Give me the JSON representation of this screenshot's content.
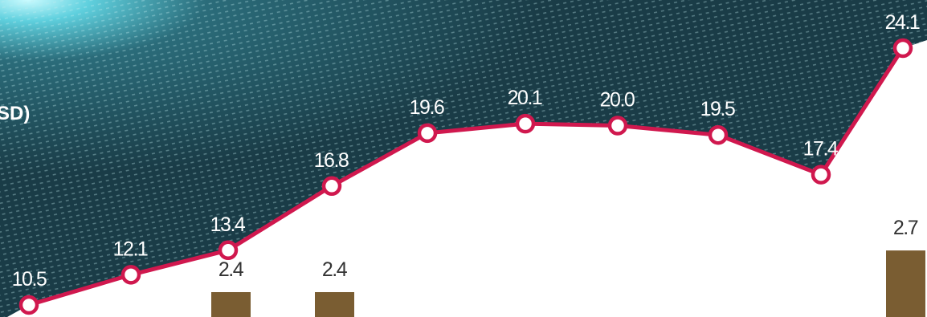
{
  "chart_data": {
    "type": "bar+line",
    "title_fragment": "SD)",
    "colors": {
      "line": "#d0184e",
      "marker_fill": "#ffffff",
      "bar": "#7a5d32",
      "background_dark": "#1f4a55",
      "background_glow": "#7fe6f0"
    },
    "line_series": {
      "values": [
        10.5,
        12.1,
        13.4,
        16.8,
        19.6,
        20.1,
        20.0,
        19.5,
        17.4,
        24.1
      ],
      "labels": [
        "10.5",
        "12.1",
        "13.4",
        "16.8",
        "19.6",
        "20.1",
        "20.0",
        "19.5",
        "17.4",
        "24.1"
      ]
    },
    "bar_series": {
      "values": [
        null,
        null,
        2.4,
        2.4,
        null,
        null,
        null,
        null,
        null,
        2.7
      ],
      "labels": [
        "",
        "",
        "2.4",
        "2.4",
        "",
        "",
        "",
        "",
        "",
        "2.7"
      ]
    }
  }
}
